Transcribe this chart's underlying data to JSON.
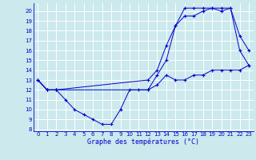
{
  "title": "Graphe des températures (°C)",
  "bg_color": "#cce9ed",
  "grid_color": "#ffffff",
  "line_color": "#0000cc",
  "xlim": [
    -0.5,
    23.5
  ],
  "ylim": [
    7.8,
    20.8
  ],
  "xticks": [
    0,
    1,
    2,
    3,
    4,
    5,
    6,
    7,
    8,
    9,
    10,
    11,
    12,
    13,
    14,
    15,
    16,
    17,
    18,
    19,
    20,
    21,
    22,
    23
  ],
  "yticks": [
    8,
    9,
    10,
    11,
    12,
    13,
    14,
    15,
    16,
    17,
    18,
    19,
    20
  ],
  "line1_x": [
    0,
    1,
    2,
    3,
    4,
    5,
    6,
    7,
    8,
    9,
    10,
    11,
    12,
    13,
    14,
    15,
    16,
    17,
    18,
    19,
    20,
    21,
    22,
    23
  ],
  "line1_y": [
    13,
    12,
    12,
    11,
    10,
    9.5,
    9,
    8.5,
    8.5,
    10,
    12,
    12,
    12,
    13.5,
    15,
    18.5,
    20.3,
    20.3,
    20.3,
    20.3,
    20,
    20.3,
    16,
    14.5
  ],
  "line2_x": [
    0,
    1,
    2,
    12,
    13,
    14,
    15,
    16,
    17,
    18,
    19,
    20,
    21,
    22,
    23
  ],
  "line2_y": [
    13,
    12,
    12,
    13,
    14,
    16.5,
    18.5,
    19.5,
    19.5,
    20,
    20.3,
    20.3,
    20.3,
    17.5,
    16
  ],
  "line3_x": [
    0,
    1,
    2,
    12,
    13,
    14,
    15,
    16,
    17,
    18,
    19,
    20,
    21,
    22,
    23
  ],
  "line3_y": [
    13,
    12,
    12,
    12,
    12.5,
    13.5,
    13,
    13,
    13.5,
    13.5,
    14,
    14,
    14,
    14,
    14.5
  ],
  "xlabel_fontsize": 6.0,
  "tick_fontsize": 5.0
}
